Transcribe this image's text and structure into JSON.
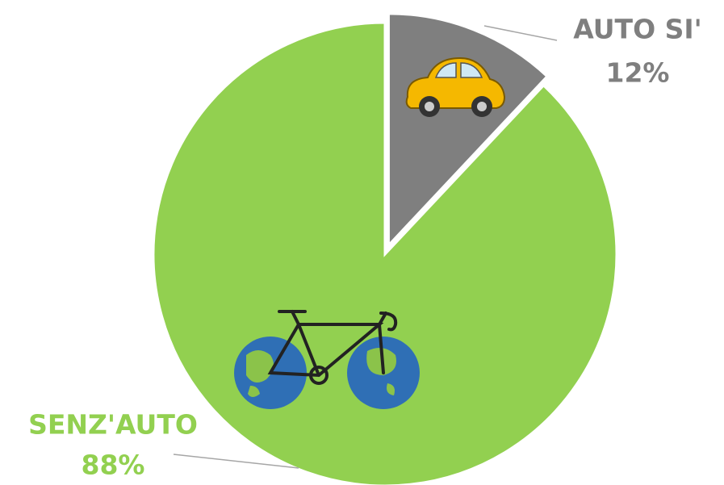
{
  "chart_data": {
    "type": "pie",
    "categories": [
      "AUTO SI'",
      "SENZ'AUTO"
    ],
    "values": [
      12,
      88
    ],
    "value_labels": [
      "12%",
      "88%"
    ],
    "colors": [
      "#7f7f7f",
      "#92d050"
    ]
  }
}
